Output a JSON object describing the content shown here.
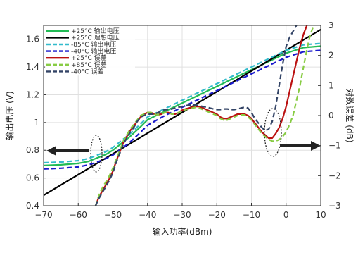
{
  "chart_data": {
    "type": "line",
    "xlabel": "输入功率(dBm)",
    "ylabel_left": "输出电压 (V)",
    "ylabel_right": "对数误差 (dB)",
    "xlim": [
      -70,
      10
    ],
    "ylim_left": [
      0.4,
      1.7
    ],
    "ylim_right": [
      -3,
      3
    ],
    "xticks": [
      -70,
      -60,
      -50,
      -40,
      -30,
      -20,
      -10,
      0,
      10
    ],
    "yticks_left": [
      0.4,
      0.6,
      0.8,
      1,
      1.2,
      1.4,
      1.6
    ],
    "yticks_right": [
      -3,
      -2,
      -1,
      0,
      1,
      2,
      3
    ],
    "xtick_labels": [
      "−70",
      "−60",
      "−50",
      "−40",
      "−30",
      "−20",
      "−10",
      "0",
      "10"
    ],
    "ytick_left_labels": [
      "0.4",
      "0.6",
      "0.8",
      "1",
      "1.2",
      "1.4",
      "1.6"
    ],
    "ytick_right_labels": [
      "−3",
      "−2",
      "−1",
      "0",
      "1",
      "2",
      "3"
    ],
    "grid": true,
    "legend_position": "top-left",
    "series": [
      {
        "name": "+25°C  输出电压",
        "axis": "left",
        "color": "#22bb55",
        "dash": "solid",
        "x": [
          -70,
          -65,
          -60,
          -57,
          -55,
          -52,
          -50,
          -47,
          -45,
          -42,
          -40,
          -35,
          -30,
          -25,
          -20,
          -15,
          -10,
          -5,
          0,
          5,
          10
        ],
        "y": [
          0.69,
          0.695,
          0.705,
          0.72,
          0.74,
          0.77,
          0.8,
          0.86,
          0.9,
          0.97,
          1.02,
          1.08,
          1.14,
          1.2,
          1.26,
          1.32,
          1.38,
          1.44,
          1.5,
          1.54,
          1.55
        ]
      },
      {
        "name": "+25°C  理想电压",
        "axis": "left",
        "color": "#000000",
        "dash": "solid",
        "x": [
          -70,
          10
        ],
        "y": [
          0.475,
          1.67
        ]
      },
      {
        "name": "-85°C  输出电压",
        "axis": "left",
        "color": "#33bbcc",
        "dash": "dash",
        "x": [
          -70,
          -65,
          -60,
          -57,
          -55,
          -52,
          -50,
          -47,
          -45,
          -42,
          -40,
          -35,
          -30,
          -25,
          -20,
          -15,
          -10,
          -5,
          0,
          5,
          10
        ],
        "y": [
          0.71,
          0.715,
          0.725,
          0.74,
          0.76,
          0.79,
          0.82,
          0.88,
          0.92,
          0.99,
          1.04,
          1.1,
          1.16,
          1.22,
          1.28,
          1.34,
          1.4,
          1.46,
          1.52,
          1.56,
          1.57
        ]
      },
      {
        "name": "-40°C  输出电压",
        "axis": "left",
        "color": "#1a1acc",
        "dash": "dash",
        "x": [
          -70,
          -65,
          -60,
          -57,
          -55,
          -52,
          -50,
          -47,
          -45,
          -42,
          -40,
          -35,
          -30,
          -25,
          -20,
          -15,
          -10,
          -5,
          0,
          5,
          10
        ],
        "y": [
          0.665,
          0.67,
          0.68,
          0.695,
          0.71,
          0.74,
          0.765,
          0.82,
          0.86,
          0.93,
          0.98,
          1.05,
          1.11,
          1.17,
          1.23,
          1.29,
          1.35,
          1.41,
          1.47,
          1.51,
          1.52
        ]
      },
      {
        "name": "+25°C  误差",
        "axis": "right",
        "color": "#bb1111",
        "dash": "solid",
        "x": [
          -55,
          -54,
          -53,
          -52,
          -51,
          -50,
          -49,
          -48,
          -47,
          -46,
          -45,
          -44,
          -43,
          -42,
          -41,
          -40,
          -39,
          -38,
          -37,
          -36,
          -35,
          -34,
          -33,
          -32,
          -31,
          -30,
          -29,
          -28,
          -27,
          -26,
          -25,
          -24,
          -23,
          -22,
          -21,
          -20,
          -19,
          -18,
          -17,
          -16,
          -15,
          -14,
          -13,
          -12,
          -11,
          -10,
          -9,
          -8,
          -7,
          -6,
          -5,
          -4,
          -3,
          -2,
          -1,
          0,
          1,
          2,
          3,
          4,
          5,
          6,
          7
        ],
        "y": [
          -3.0,
          -2.7,
          -2.5,
          -2.3,
          -2.1,
          -1.85,
          -1.5,
          -1.2,
          -0.9,
          -0.7,
          -0.5,
          -0.35,
          -0.2,
          -0.05,
          0.05,
          0.1,
          0.1,
          0.05,
          0.02,
          0.05,
          0.1,
          0.1,
          0.05,
          0.05,
          0.1,
          0.18,
          0.22,
          0.25,
          0.28,
          0.3,
          0.3,
          0.25,
          0.2,
          0.15,
          0.1,
          0.05,
          -0.05,
          -0.1,
          -0.1,
          -0.05,
          0.0,
          0.05,
          0.05,
          0.05,
          0.0,
          -0.1,
          -0.25,
          -0.4,
          -0.55,
          -0.65,
          -0.75,
          -0.75,
          -0.6,
          -0.4,
          -0.1,
          0.3,
          0.8,
          1.3,
          1.8,
          2.3,
          2.7,
          3.0,
          3.3
        ]
      },
      {
        "name": "+85°C  误差",
        "axis": "right",
        "color": "#88cc44",
        "dash": "dash",
        "x": [
          -55,
          -54,
          -53,
          -52,
          -51,
          -50,
          -49,
          -48,
          -47,
          -46,
          -45,
          -44,
          -43,
          -42,
          -41,
          -40,
          -39,
          -38,
          -37,
          -36,
          -35,
          -34,
          -33,
          -32,
          -31,
          -30,
          -29,
          -28,
          -27,
          -26,
          -25,
          -24,
          -23,
          -22,
          -21,
          -20,
          -19,
          -18,
          -17,
          -16,
          -15,
          -14,
          -13,
          -12,
          -11,
          -10,
          -9,
          -8,
          -7,
          -6,
          -5,
          -4,
          -3,
          -2,
          -1,
          0,
          1,
          2,
          3,
          4,
          5,
          6,
          7,
          8
        ],
        "y": [
          -3.0,
          -2.65,
          -2.4,
          -2.2,
          -2.0,
          -1.75,
          -1.45,
          -1.15,
          -0.85,
          -0.65,
          -0.45,
          -0.3,
          -0.15,
          0.0,
          0.05,
          0.1,
          0.1,
          0.05,
          0.02,
          0.05,
          0.1,
          0.1,
          0.05,
          0.05,
          0.1,
          0.15,
          0.2,
          0.22,
          0.25,
          0.28,
          0.25,
          0.2,
          0.15,
          0.1,
          0.05,
          0.0,
          -0.1,
          -0.15,
          -0.15,
          -0.1,
          -0.05,
          0.0,
          0.02,
          0.02,
          -0.05,
          -0.15,
          -0.3,
          -0.45,
          -0.6,
          -0.7,
          -0.8,
          -0.85,
          -0.85,
          -0.8,
          -0.7,
          -0.55,
          -0.3,
          0.0,
          0.5,
          1.0,
          1.6,
          2.2,
          2.7,
          3.0
        ]
      },
      {
        "name": "-40°C  误差",
        "axis": "right",
        "color": "#334466",
        "dash": "dash",
        "x": [
          -55,
          -54,
          -53,
          -52,
          -51,
          -50,
          -49,
          -48,
          -47,
          -46,
          -45,
          -44,
          -43,
          -42,
          -41,
          -40,
          -39,
          -38,
          -37,
          -36,
          -35,
          -34,
          -33,
          -32,
          -31,
          -30,
          -29,
          -28,
          -27,
          -26,
          -25,
          -24,
          -23,
          -22,
          -21,
          -20,
          -19,
          -18,
          -17,
          -16,
          -15,
          -14,
          -13,
          -12,
          -11,
          -10,
          -9,
          -8,
          -7,
          -6,
          -5,
          -4,
          -3,
          -2,
          -1,
          0,
          1,
          2,
          3,
          4
        ],
        "y": [
          -3.0,
          -2.75,
          -2.55,
          -2.35,
          -2.15,
          -1.9,
          -1.55,
          -1.25,
          -0.95,
          -0.75,
          -0.55,
          -0.4,
          -0.2,
          -0.05,
          0.0,
          0.05,
          0.05,
          0.05,
          0.1,
          0.15,
          0.2,
          0.2,
          0.22,
          0.25,
          0.28,
          0.3,
          0.33,
          0.35,
          0.35,
          0.35,
          0.33,
          0.3,
          0.28,
          0.25,
          0.22,
          0.2,
          0.2,
          0.22,
          0.22,
          0.2,
          0.2,
          0.22,
          0.25,
          0.28,
          0.25,
          0.1,
          -0.1,
          -0.25,
          -0.4,
          -0.5,
          -0.45,
          -0.2,
          0.3,
          1.0,
          1.7,
          2.3,
          2.6,
          2.8,
          3.0,
          3.2
        ]
      }
    ]
  }
}
